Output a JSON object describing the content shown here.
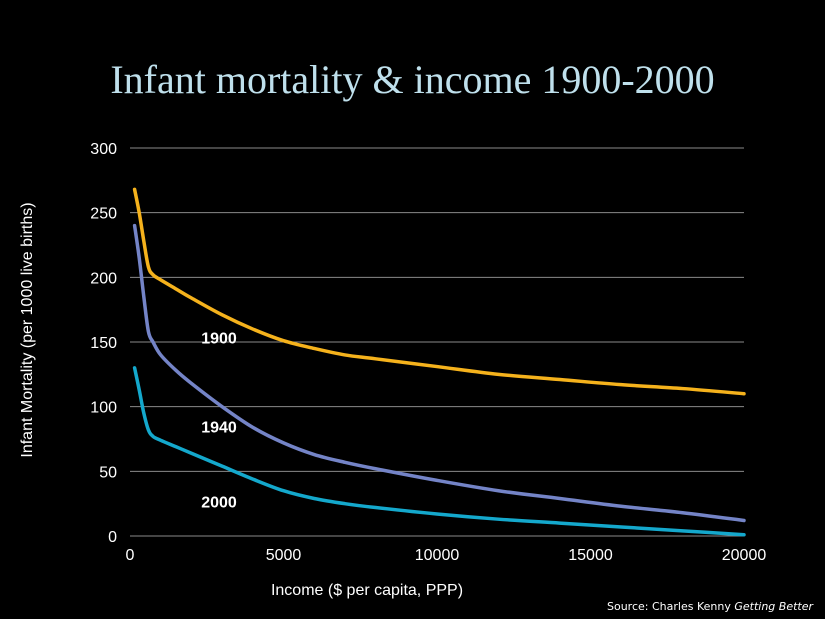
{
  "chart_data": {
    "type": "line",
    "title": "Infant mortality & income 1900-2000",
    "xlabel": "Income ($ per capita, PPP)",
    "ylabel": "Infant Mortality (per 1000 live births)",
    "xlim": [
      0,
      20000
    ],
    "ylim": [
      0,
      300
    ],
    "xticks": [
      "0",
      "5000",
      "10000",
      "15000",
      "20000"
    ],
    "yticks": [
      "0",
      "50",
      "100",
      "150",
      "200",
      "250",
      "300"
    ],
    "grid": true,
    "series": [
      {
        "name": "1900",
        "color": "#f5b21c",
        "points": [
          [
            150,
            268
          ],
          [
            300,
            250
          ],
          [
            450,
            228
          ],
          [
            600,
            208
          ],
          [
            750,
            202
          ],
          [
            1000,
            198
          ],
          [
            1500,
            191
          ],
          [
            2000,
            184
          ],
          [
            3000,
            171
          ],
          [
            4000,
            160
          ],
          [
            5000,
            151
          ],
          [
            6000,
            145
          ],
          [
            7000,
            140
          ],
          [
            8000,
            137
          ],
          [
            10000,
            131
          ],
          [
            12000,
            125
          ],
          [
            14000,
            121
          ],
          [
            16000,
            117
          ],
          [
            18000,
            114
          ],
          [
            20000,
            110
          ]
        ]
      },
      {
        "name": "1940",
        "color": "#7484c7",
        "points": [
          [
            150,
            240
          ],
          [
            300,
            215
          ],
          [
            450,
            185
          ],
          [
            600,
            158
          ],
          [
            750,
            150
          ],
          [
            1000,
            140
          ],
          [
            1500,
            128
          ],
          [
            2000,
            118
          ],
          [
            3000,
            100
          ],
          [
            4000,
            84
          ],
          [
            5000,
            72
          ],
          [
            6000,
            63
          ],
          [
            7000,
            57
          ],
          [
            8000,
            52
          ],
          [
            10000,
            43
          ],
          [
            12000,
            35
          ],
          [
            14000,
            29
          ],
          [
            16000,
            23
          ],
          [
            18000,
            18
          ],
          [
            20000,
            12
          ]
        ]
      },
      {
        "name": "2000",
        "color": "#14a8cc",
        "points": [
          [
            150,
            130
          ],
          [
            300,
            113
          ],
          [
            450,
            95
          ],
          [
            600,
            82
          ],
          [
            750,
            77
          ],
          [
            1000,
            74
          ],
          [
            1500,
            69
          ],
          [
            2000,
            64
          ],
          [
            3000,
            54
          ],
          [
            4000,
            44
          ],
          [
            5000,
            35
          ],
          [
            6000,
            29
          ],
          [
            7000,
            25
          ],
          [
            8000,
            22
          ],
          [
            10000,
            17
          ],
          [
            12000,
            13
          ],
          [
            14000,
            10
          ],
          [
            16000,
            7
          ],
          [
            18000,
            4
          ],
          [
            20000,
            1
          ]
        ]
      }
    ],
    "series_labels": [
      {
        "text": "1900",
        "x": 2900,
        "y": 149
      },
      {
        "text": "1940",
        "x": 2900,
        "y": 80
      },
      {
        "text": "2000",
        "x": 2900,
        "y": 22
      }
    ]
  },
  "source": {
    "prefix": "Source: Charles Kenny ",
    "book": "Getting Better"
  }
}
